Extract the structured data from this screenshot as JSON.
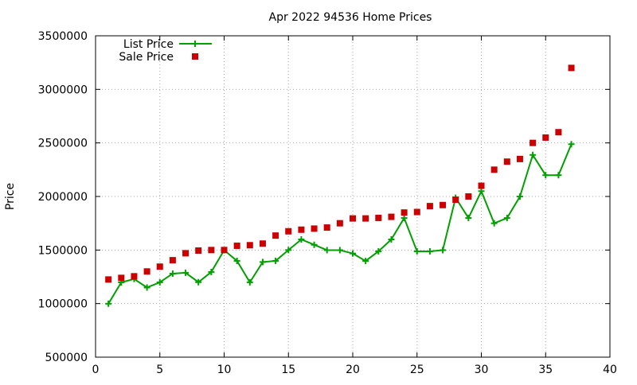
{
  "chart_data": {
    "type": "line",
    "title": "Apr 2022 94536 Home Prices",
    "xlabel": "",
    "ylabel": "Price",
    "xlim": [
      0,
      40
    ],
    "ylim": [
      500000,
      3500000
    ],
    "xticks": [
      0,
      5,
      10,
      15,
      20,
      25,
      30,
      35,
      40
    ],
    "yticks": [
      500000,
      1000000,
      1500000,
      2000000,
      2500000,
      3000000,
      3500000
    ],
    "grid": true,
    "legend": "top-left",
    "series": [
      {
        "name": "List Price",
        "style": "line-plus",
        "color": "#00a000",
        "x": [
          1,
          2,
          3,
          4,
          5,
          6,
          7,
          8,
          9,
          10,
          11,
          12,
          13,
          14,
          15,
          16,
          17,
          18,
          19,
          20,
          21,
          22,
          23,
          24,
          25,
          26,
          27,
          28,
          29,
          30,
          31,
          32,
          33,
          34,
          35,
          36,
          37
        ],
        "values": [
          999000,
          1198000,
          1230000,
          1150000,
          1199000,
          1280000,
          1288000,
          1200000,
          1295000,
          1499000,
          1399000,
          1199000,
          1388000,
          1399000,
          1500000,
          1599000,
          1549000,
          1499000,
          1499000,
          1468000,
          1398000,
          1488000,
          1599000,
          1799000,
          1488000,
          1488000,
          1499000,
          1988000,
          1799000,
          2050000,
          1750000,
          1799000,
          1999000,
          2388000,
          2199000,
          2199000,
          2488000
        ]
      },
      {
        "name": "Sale Price",
        "style": "square",
        "color": "#cc0000",
        "x": [
          1,
          2,
          3,
          4,
          5,
          6,
          7,
          8,
          9,
          10,
          11,
          12,
          13,
          14,
          15,
          16,
          17,
          18,
          19,
          20,
          21,
          22,
          23,
          24,
          25,
          26,
          27,
          28,
          29,
          30,
          31,
          32,
          33,
          34,
          35,
          36,
          37
        ],
        "values": [
          1225000,
          1240000,
          1255000,
          1300000,
          1345000,
          1405000,
          1470000,
          1495000,
          1500000,
          1500000,
          1540000,
          1545000,
          1560000,
          1635000,
          1675000,
          1690000,
          1700000,
          1710000,
          1750000,
          1795000,
          1795000,
          1800000,
          1810000,
          1850000,
          1855000,
          1910000,
          1920000,
          1970000,
          2000000,
          2100000,
          2250000,
          2325000,
          2350000,
          2500000,
          2550000,
          2600000,
          3200000
        ]
      }
    ]
  }
}
